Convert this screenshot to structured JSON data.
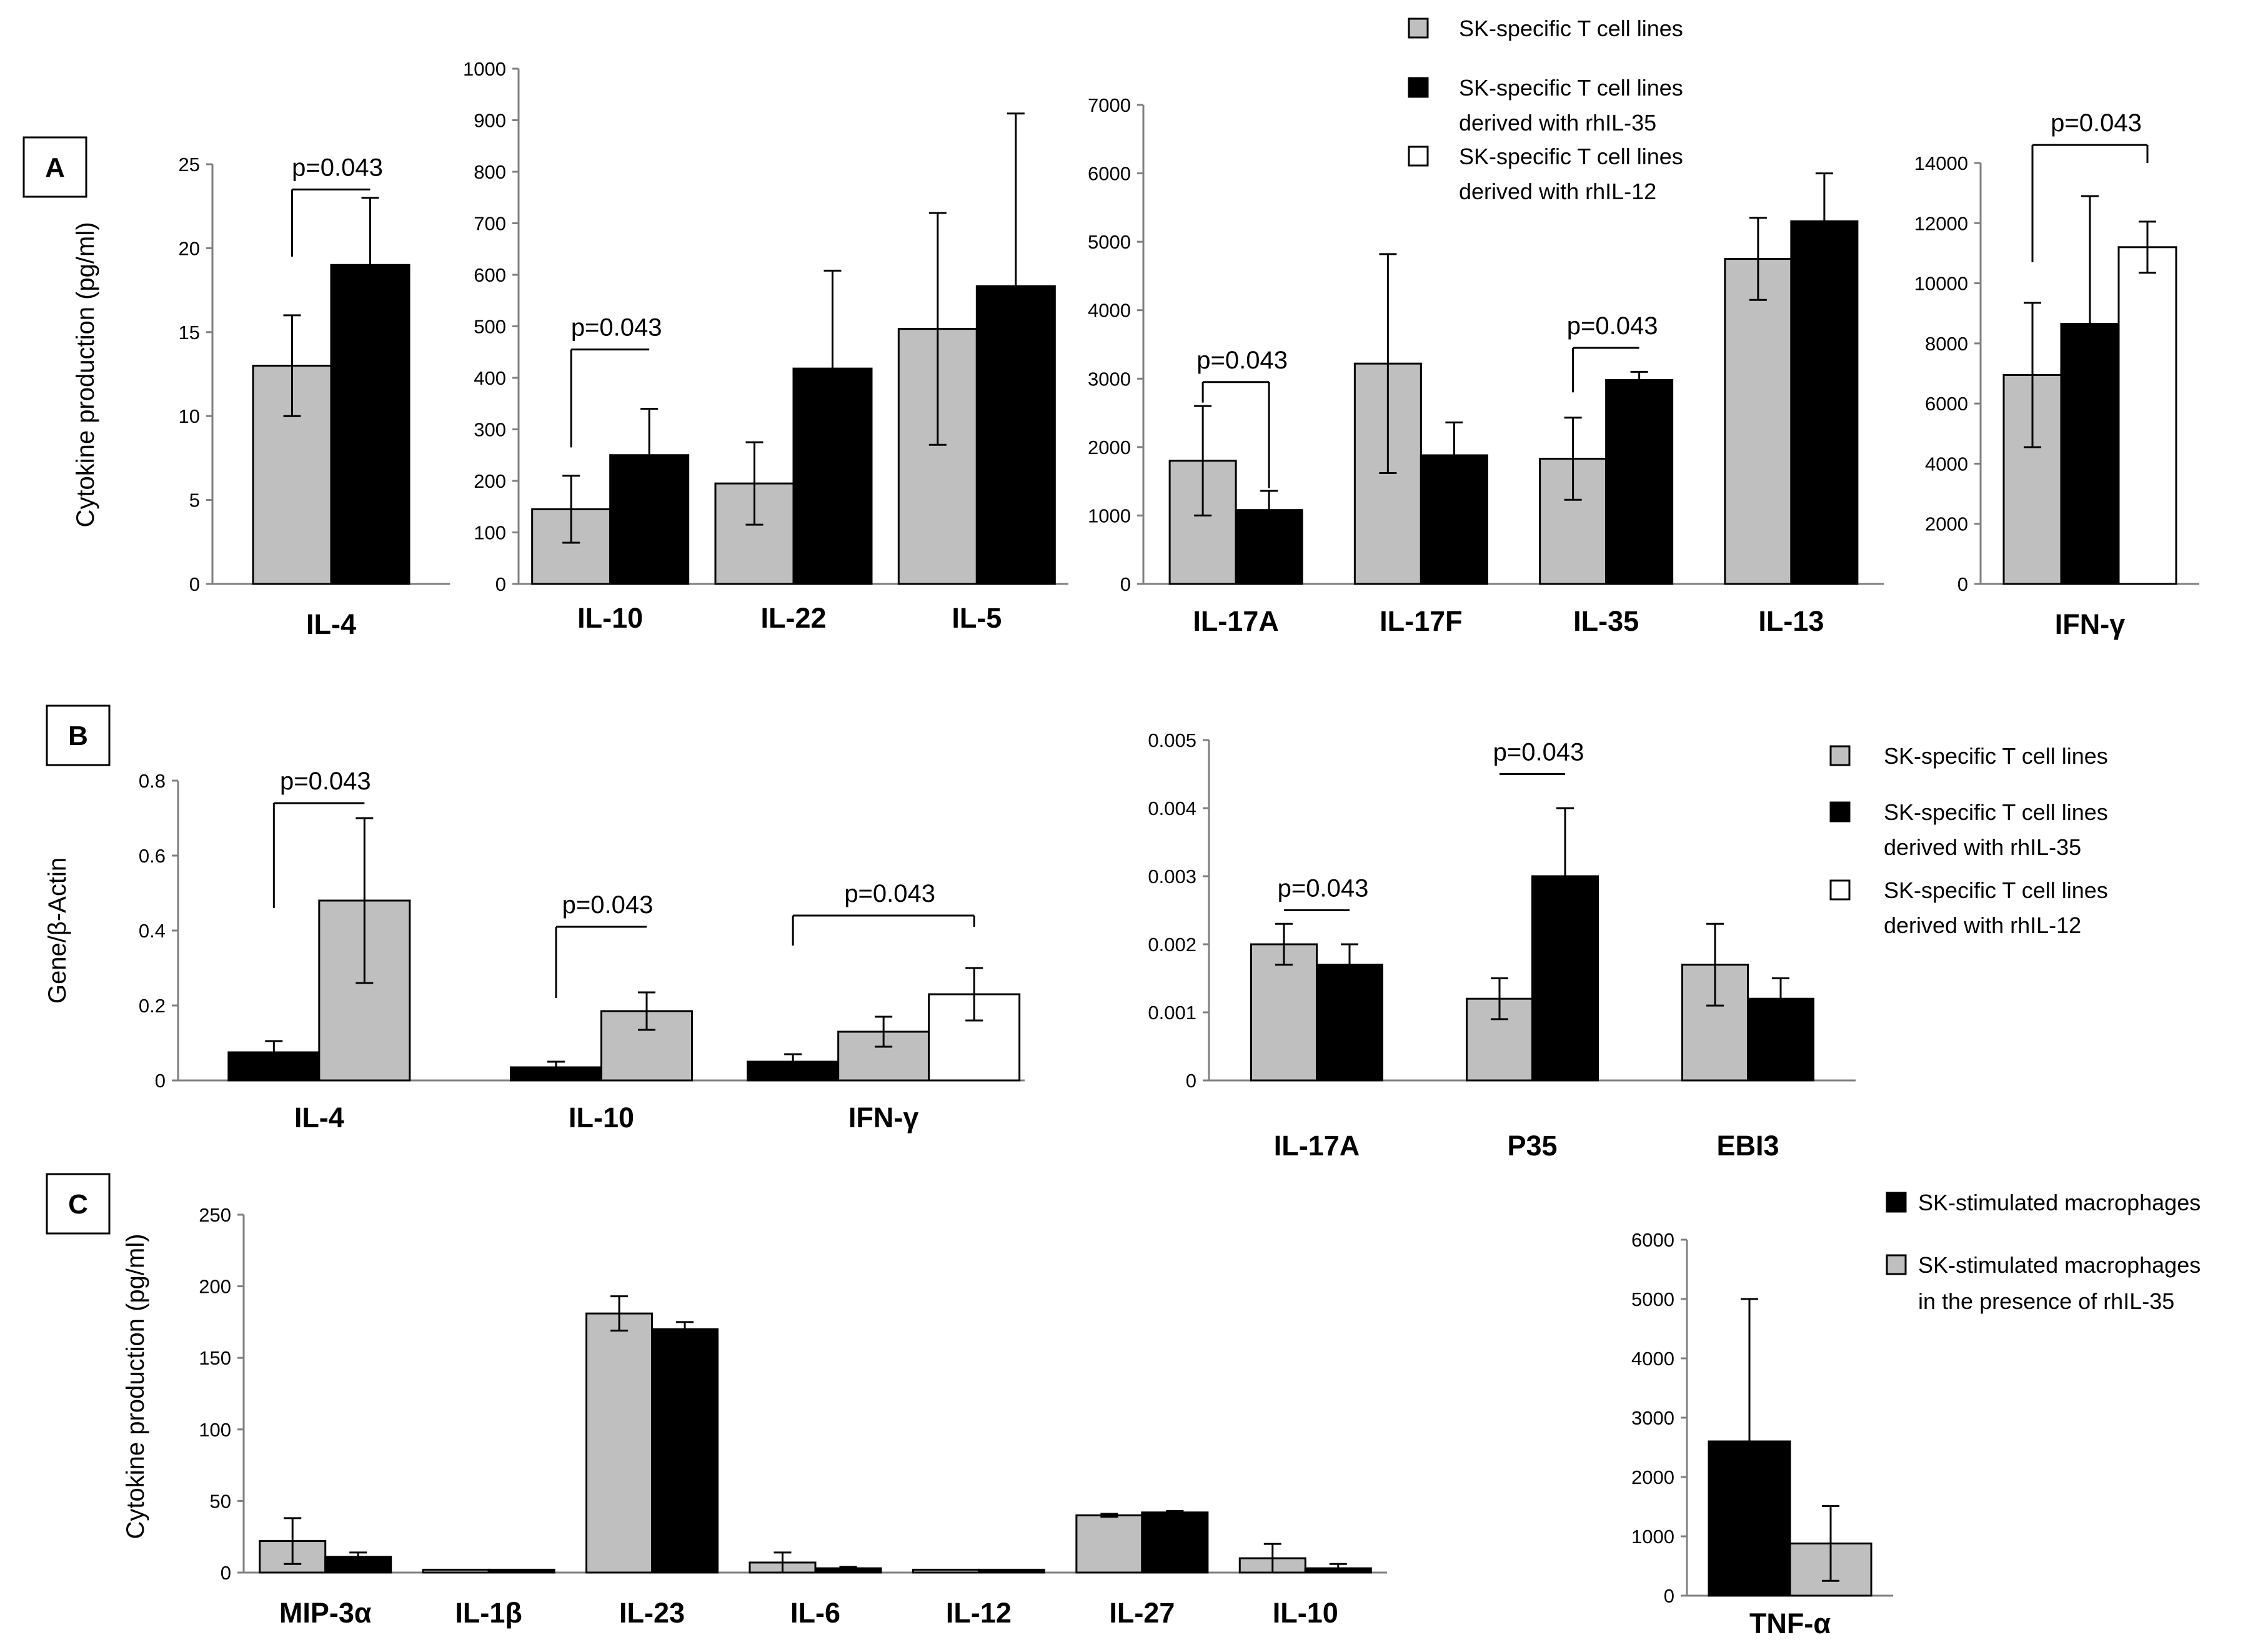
{
  "figure": {
    "panel_letters": [
      "A",
      "B",
      "C"
    ],
    "colors": {
      "gray": "#bfbfbf",
      "black": "#000000",
      "white": "#ffffff",
      "axis": "#7f7f7f"
    }
  },
  "legends": {
    "A": [
      {
        "swatch": "gray",
        "lines": [
          "SK-specific T cell  lines"
        ]
      },
      {
        "swatch": "black",
        "lines": [
          "SK-specific T cell  lines",
          "derived  with  rhIL-35"
        ]
      },
      {
        "swatch": "white",
        "lines": [
          "SK-specific T cell  lines",
          "derived  with  rhIL-12"
        ]
      }
    ],
    "B": [
      {
        "swatch": "gray",
        "lines": [
          "SK-specific T cell  lines"
        ]
      },
      {
        "swatch": "black",
        "lines": [
          "SK-specific T cell  lines",
          "derived  with  rhIL-35"
        ]
      },
      {
        "swatch": "white",
        "lines": [
          "SK-specific T cell  lines",
          "derived  with  rhIL-12"
        ]
      }
    ],
    "C": [
      {
        "swatch": "black",
        "lines": [
          "SK-stimulated macrophages"
        ]
      },
      {
        "swatch": "gray",
        "lines": [
          "SK-stimulated macrophages",
          "in  the  presence  of rhIL-35"
        ]
      }
    ]
  },
  "chart_data": [
    {
      "id": "A1",
      "type": "bar",
      "ylabel": "Cytokine production (pg/ml)",
      "ylim": [
        0,
        25
      ],
      "yticks": [
        0,
        5,
        10,
        15,
        20,
        25
      ],
      "categories": [
        "IL-4"
      ],
      "series": [
        {
          "color": "gray",
          "values": [
            13
          ],
          "errors": [
            3
          ]
        },
        {
          "color": "black",
          "values": [
            19
          ],
          "errors": [
            4
          ]
        }
      ],
      "annotations": [
        {
          "text": "p=0.043",
          "cat": 0,
          "from": 0,
          "to": 1,
          "y": 23.5,
          "left_drop": 19.5,
          "right_drop": null
        }
      ]
    },
    {
      "id": "A2",
      "type": "bar",
      "ylabel": "",
      "ylim": [
        0,
        1000
      ],
      "yticks": [
        0,
        100,
        200,
        300,
        400,
        500,
        600,
        700,
        800,
        900,
        1000
      ],
      "categories": [
        "IL-10",
        "IL-22",
        "IL-5"
      ],
      "series": [
        {
          "color": "gray",
          "values": [
            145,
            195,
            495
          ],
          "errors": [
            65,
            80,
            225
          ]
        },
        {
          "color": "black",
          "values": [
            250,
            418,
            578
          ],
          "errors": [
            90,
            190,
            335
          ]
        }
      ],
      "annotations": [
        {
          "text": "p=0.043",
          "cat": 0,
          "from": 0,
          "to": 1,
          "y": 455,
          "left_drop": 265,
          "right_drop": null
        }
      ]
    },
    {
      "id": "A3",
      "type": "bar",
      "ylabel": "",
      "ylim": [
        0,
        7000
      ],
      "yticks": [
        0,
        1000,
        2000,
        3000,
        4000,
        5000,
        6000,
        7000
      ],
      "categories": [
        "IL-17A",
        "IL-17F",
        "IL-35",
        "IL-13"
      ],
      "series": [
        {
          "color": "gray",
          "values": [
            1800,
            3220,
            1830,
            4750
          ],
          "errors": [
            800,
            1600,
            600,
            600
          ]
        },
        {
          "color": "black",
          "values": [
            1080,
            1880,
            2980,
            5300
          ],
          "errors": [
            280,
            480,
            120,
            700
          ]
        }
      ],
      "annotations": [
        {
          "text": "p=0.043",
          "cat": 0,
          "from": 0,
          "to": 1,
          "y": 2950,
          "left_drop": 2650,
          "right_drop": 1400
        },
        {
          "text": "p=0.043",
          "cat": 2,
          "from": 0,
          "to": 1,
          "y": 3450,
          "left_drop": 2800,
          "right_drop": null
        }
      ]
    },
    {
      "id": "A4",
      "type": "bar",
      "ylabel": "",
      "ylim": [
        0,
        14000
      ],
      "yticks": [
        0,
        2000,
        4000,
        6000,
        8000,
        10000,
        12000,
        14000
      ],
      "categories": [
        "IFN-γ"
      ],
      "series": [
        {
          "color": "gray",
          "values": [
            6950
          ],
          "errors": [
            2400
          ]
        },
        {
          "color": "black",
          "values": [
            8650
          ],
          "errors": [
            4250
          ]
        },
        {
          "color": "white",
          "values": [
            11200
          ],
          "errors": [
            850
          ]
        }
      ],
      "annotations": [
        {
          "text": "p=0.043",
          "cat": 0,
          "from": 0,
          "to": 2,
          "y": 14600,
          "left_drop": 10700,
          "right_drop": 14000
        }
      ]
    },
    {
      "id": "B1",
      "type": "bar",
      "ylabel": "Gene/β-Actin",
      "ylim": [
        0,
        0.8
      ],
      "yticks": [
        0,
        0.2,
        0.4,
        0.6,
        0.8
      ],
      "ytick_labels": [
        "0",
        "0.2",
        "0.4",
        "0.6",
        "0.8"
      ],
      "categories": [
        "IL-4",
        "IL-10",
        "IFN-γ"
      ],
      "series": [
        {
          "color": "black",
          "values": [
            0.075,
            0.035,
            0.05
          ],
          "errors": [
            0.03,
            0.015,
            0.02
          ]
        },
        {
          "color": "gray",
          "values": [
            0.48,
            0.185,
            0.13
          ],
          "errors": [
            0.22,
            0.05,
            0.04
          ]
        },
        {
          "color": "white",
          "values": [
            null,
            null,
            0.23
          ],
          "errors": [
            null,
            null,
            0.07
          ]
        }
      ],
      "annotations": [
        {
          "text": "p=0.043",
          "cat": 0,
          "from": 0,
          "to": 1,
          "y": 0.74,
          "left_drop": 0.46,
          "right_drop": null
        },
        {
          "text": "p=0.043",
          "cat": 1,
          "from": 0,
          "to": 1,
          "y": 0.41,
          "left_drop": 0.22,
          "right_drop": null
        },
        {
          "text": "p=0.043",
          "cat": 2,
          "from": 0,
          "to": 2,
          "y": 0.44,
          "left_drop": 0.36,
          "right_drop": 0.41
        }
      ]
    },
    {
      "id": "B2",
      "type": "bar",
      "ylabel": "",
      "ylim": [
        0,
        0.005
      ],
      "yticks": [
        0,
        0.001,
        0.002,
        0.003,
        0.004,
        0.005
      ],
      "ytick_labels": [
        "0",
        "0.001",
        "0.002",
        "0.003",
        "0.004",
        "0.005"
      ],
      "categories": [
        "IL-17A",
        "P35",
        "EBI3"
      ],
      "series": [
        {
          "color": "gray",
          "values": [
            0.002,
            0.0012,
            0.0017
          ],
          "errors": [
            0.0003,
            0.0003,
            0.0006
          ]
        },
        {
          "color": "black",
          "values": [
            0.0017,
            0.003,
            0.0012
          ],
          "errors": [
            0.0003,
            0.001,
            0.0003
          ]
        }
      ],
      "annotations": [
        {
          "text": "p=0.043",
          "cat": 0,
          "from": 0,
          "to": 1,
          "y": 0.0025,
          "left_drop": null,
          "right_drop": null
        },
        {
          "text": "p=0.043",
          "cat": 1,
          "from": 0,
          "to": 1,
          "y": 0.0045,
          "left_drop": null,
          "right_drop": null
        }
      ]
    },
    {
      "id": "C1",
      "type": "bar",
      "ylabel": "Cytokine production (pg/ml)",
      "ylim": [
        0,
        250
      ],
      "yticks": [
        0,
        50,
        100,
        150,
        200,
        250
      ],
      "categories": [
        "MIP-3α",
        "IL-1β",
        "IL-23",
        "IL-6",
        "IL-12",
        "IL-27",
        "IL-10"
      ],
      "series": [
        {
          "color": "gray",
          "values": [
            22,
            2,
            181,
            7,
            2,
            40,
            10
          ],
          "errors": [
            16,
            0,
            12,
            7,
            0,
            1,
            10
          ]
        },
        {
          "color": "black",
          "values": [
            11,
            2,
            170,
            3,
            2,
            42,
            3
          ],
          "errors": [
            3,
            0,
            5,
            1,
            0,
            1,
            3
          ]
        }
      ],
      "annotations": []
    },
    {
      "id": "C2",
      "type": "bar",
      "ylabel": "",
      "ylim": [
        0,
        6000
      ],
      "yticks": [
        0,
        1000,
        2000,
        3000,
        4000,
        5000,
        6000
      ],
      "categories": [
        "TNF-α"
      ],
      "series": [
        {
          "color": "black",
          "values": [
            2600
          ],
          "errors": [
            2400
          ]
        },
        {
          "color": "gray",
          "values": [
            880
          ],
          "errors": [
            630
          ]
        }
      ],
      "annotations": []
    }
  ]
}
